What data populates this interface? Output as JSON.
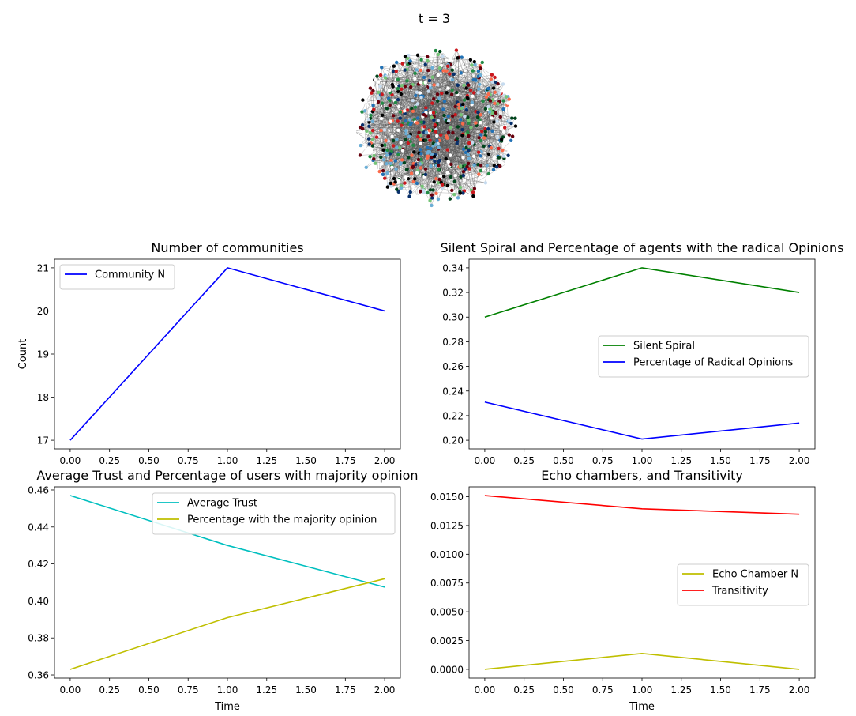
{
  "main_title": "t = 3",
  "chart_data": [
    {
      "type": "network",
      "description_free": true,
      "node_colors": [
        "#08306b",
        "#2171b5",
        "#6baed6",
        "#c6dbef",
        "#ffffff",
        "#000000",
        "#00441b",
        "#238b45",
        "#74c476",
        "#fb6a4a",
        "#cb181d",
        "#67000d"
      ]
    },
    {
      "type": "line",
      "title": "Number of communities",
      "xlabel": "",
      "ylabel": "Count",
      "xlim": [
        -0.1,
        2.1
      ],
      "ylim": [
        16.8,
        21.2
      ],
      "xticks": [
        "0.00",
        "0.25",
        "0.50",
        "0.75",
        "1.00",
        "1.25",
        "1.50",
        "1.75",
        "2.00"
      ],
      "yticks": [
        "17",
        "18",
        "19",
        "20",
        "21"
      ],
      "legend_position": "upper-left",
      "series": [
        {
          "name": "Community N",
          "color": "#0000ff",
          "x": [
            0,
            1,
            2
          ],
          "values": [
            17,
            21,
            20
          ]
        }
      ]
    },
    {
      "type": "line",
      "title": "Silent Spiral and Percentage of agents with the radical Opinions",
      "xlabel": "",
      "ylabel": "",
      "xlim": [
        -0.1,
        2.1
      ],
      "ylim": [
        0.193,
        0.347
      ],
      "xticks": [
        "0.00",
        "0.25",
        "0.50",
        "0.75",
        "1.00",
        "1.25",
        "1.50",
        "1.75",
        "2.00"
      ],
      "yticks": [
        "0.20",
        "0.22",
        "0.24",
        "0.26",
        "0.28",
        "0.30",
        "0.32",
        "0.34"
      ],
      "legend_position": "center-right",
      "series": [
        {
          "name": "Silent Spiral",
          "color": "#008000",
          "x": [
            0,
            1,
            2
          ],
          "values": [
            0.3,
            0.34,
            0.32
          ]
        },
        {
          "name": "Percentage of Radical Opinions",
          "color": "#0000ff",
          "x": [
            0,
            1,
            2
          ],
          "values": [
            0.231,
            0.201,
            0.214
          ]
        }
      ]
    },
    {
      "type": "line",
      "title": "Average Trust and Percentage of users with majority opinion",
      "xlabel": "Time",
      "ylabel": "",
      "xlim": [
        -0.1,
        2.1
      ],
      "ylim": [
        0.3583,
        0.4617
      ],
      "xticks": [
        "0.00",
        "0.25",
        "0.50",
        "0.75",
        "1.00",
        "1.25",
        "1.50",
        "1.75",
        "2.00"
      ],
      "yticks": [
        "0.36",
        "0.38",
        "0.40",
        "0.42",
        "0.44",
        "0.46"
      ],
      "legend_position": "upper-right",
      "series": [
        {
          "name": "Average Trust",
          "color": "#00bfbf",
          "x": [
            0,
            1,
            2
          ],
          "values": [
            0.457,
            0.43,
            0.4075
          ]
        },
        {
          "name": "Percentage with the majority opinion",
          "color": "#bfbf00",
          "x": [
            0,
            1,
            2
          ],
          "values": [
            0.363,
            0.391,
            0.412
          ]
        }
      ]
    },
    {
      "type": "line",
      "title": "Echo chambers, and Transitivity",
      "xlabel": "Time",
      "ylabel": "",
      "xlim": [
        -0.1,
        2.1
      ],
      "ylim": [
        -0.00076,
        0.01586
      ],
      "xticks": [
        "0.00",
        "0.25",
        "0.50",
        "0.75",
        "1.00",
        "1.25",
        "1.50",
        "1.75",
        "2.00"
      ],
      "yticks": [
        "0.0000",
        "0.0025",
        "0.0050",
        "0.0075",
        "0.0100",
        "0.0125",
        "0.0150"
      ],
      "legend_position": "center-right",
      "series": [
        {
          "name": "Echo Chamber N",
          "color": "#bfbf00",
          "x": [
            0,
            1,
            2
          ],
          "values": [
            0.0,
            0.00138,
            0.0
          ]
        },
        {
          "name": "Transitivity",
          "color": "#ff0000",
          "x": [
            0,
            1,
            2
          ],
          "values": [
            0.0151,
            0.01395,
            0.01348
          ]
        }
      ]
    }
  ]
}
